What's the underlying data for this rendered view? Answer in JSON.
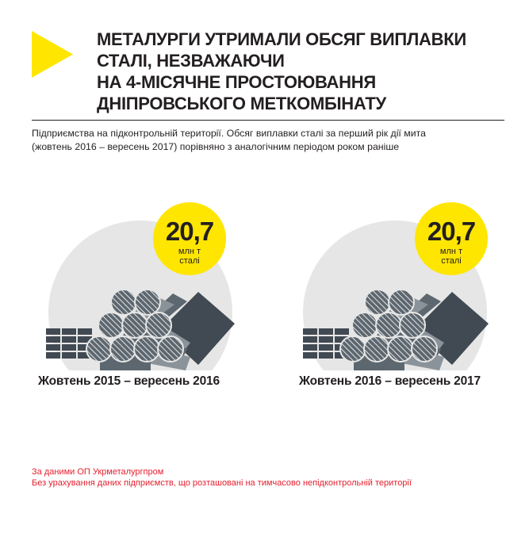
{
  "colors": {
    "accent_yellow": "#ffe600",
    "text_dark": "#231f20",
    "note_red": "#e5202e",
    "bg_circle": "#e6e6e6",
    "steel_dark": "#414a52",
    "steel_mid": "#5d676f",
    "steel_light": "#8a9399"
  },
  "header": {
    "icon": "yellow-play-triangle-icon",
    "title_lines": [
      "МЕТАЛУРГИ УТРИМАЛИ ОБСЯГ ВИПЛАВКИ",
      "СТАЛІ, НЕЗВАЖАЮЧИ",
      "НА 4-МІСЯЧНЕ ПРОСТОЮВАННЯ",
      "ДНІПРОВСЬКОГО МЕТКОМБІНАТУ"
    ]
  },
  "subtitle_lines": [
    "Підприємства на підконтрольній території. Обсяг виплавки сталі за перший рік дії мита",
    "(жовтень 2016 – вересень 2017) порівняно з аналогічним періодом роком раніше"
  ],
  "panels": [
    {
      "icon": "steel-products-icon",
      "value": "20,7",
      "unit_line1": "млн т",
      "unit_line2": "сталі",
      "period": "Жовтень 2015 – вересень 2016"
    },
    {
      "icon": "steel-products-icon",
      "value": "20,7",
      "unit_line1": "млн т",
      "unit_line2": "сталі",
      "period": "Жовтень 2016 – вересень 2017"
    }
  ],
  "notes": [
    "За даними ОП Укрметалургпром",
    "Без урахування даних підприємств, що розташовані на тимчасово непідконтрольній території"
  ]
}
